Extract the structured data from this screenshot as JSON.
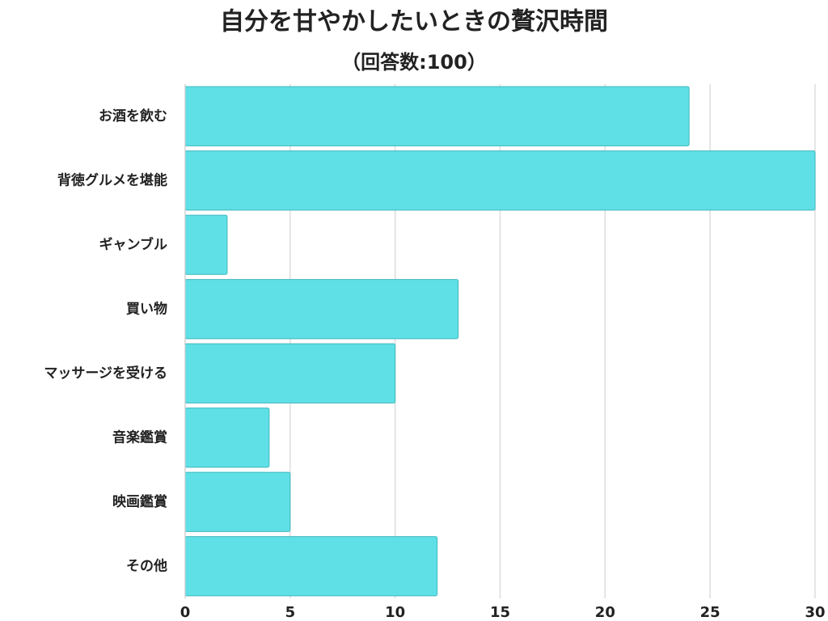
{
  "chart_data": {
    "type": "bar",
    "orientation": "horizontal",
    "title": "自分を甘やかしたいときの贅沢時間",
    "subtitle": "（回答数:100）",
    "categories": [
      "お酒を飲む",
      "背徳グルメを堪能",
      "ギャンブル",
      "買い物",
      "マッサージを受ける",
      "音楽鑑賞",
      "映画鑑賞",
      "その他"
    ],
    "values": [
      24,
      30,
      2,
      13,
      10,
      4,
      5,
      12
    ],
    "color": "#5ee0e6",
    "xlim": [
      0,
      30
    ],
    "xticks": [
      0,
      5,
      10,
      15,
      20,
      25,
      30
    ],
    "grid": true
  }
}
